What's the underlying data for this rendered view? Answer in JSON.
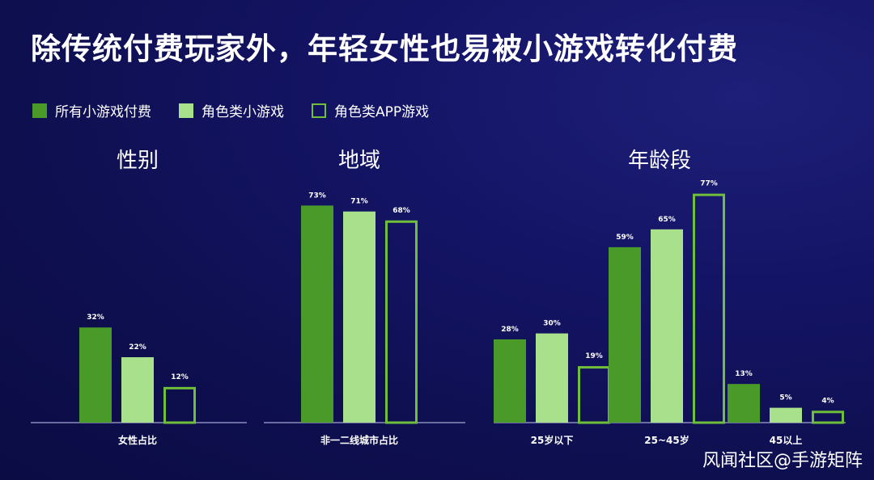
{
  "title": "除传统付费玩家外，年轻女性也易被小游戏转化付费",
  "legend": [
    {
      "label": "所有小游戏付费",
      "color": "#4a9a2a",
      "style": "filled"
    },
    {
      "label": "角色类小游戏",
      "color": "#a8e08c",
      "style": "filled"
    },
    {
      "label": "角色类APP游戏",
      "color": "#6fbf3a",
      "style": "outline"
    }
  ],
  "panels": {
    "gender": {
      "title": "性别"
    },
    "region": {
      "title": "地域"
    },
    "age": {
      "title": "年龄段"
    }
  },
  "watermark": "风闻社区@手游矩阵",
  "chart_data": [
    {
      "type": "bar",
      "title": "性别",
      "categories": [
        "女性占比"
      ],
      "series": [
        {
          "name": "所有小游戏付费",
          "values": [
            32
          ]
        },
        {
          "name": "角色类小游戏",
          "values": [
            22
          ]
        },
        {
          "name": "角色类APP游戏",
          "values": [
            12
          ]
        }
      ],
      "value_labels": [
        [
          "32%"
        ],
        [
          "22%"
        ],
        [
          "12%"
        ]
      ]
    },
    {
      "type": "bar",
      "title": "地域",
      "categories": [
        "非一二线城市占比"
      ],
      "series": [
        {
          "name": "所有小游戏付费",
          "values": [
            73
          ]
        },
        {
          "name": "角色类小游戏",
          "values": [
            71
          ]
        },
        {
          "name": "角色类APP游戏",
          "values": [
            68
          ]
        }
      ],
      "value_labels": [
        [
          "73%"
        ],
        [
          "71%"
        ],
        [
          "68%"
        ]
      ]
    },
    {
      "type": "bar",
      "title": "年龄段",
      "categories": [
        "25岁以下",
        "25~45岁",
        "45以上"
      ],
      "series": [
        {
          "name": "所有小游戏付费",
          "values": [
            28,
            59,
            13
          ]
        },
        {
          "name": "角色类小游戏",
          "values": [
            30,
            65,
            5
          ]
        },
        {
          "name": "角色类APP游戏",
          "values": [
            19,
            77,
            4
          ]
        }
      ],
      "value_labels": [
        [
          "28%",
          "59%",
          "13%"
        ],
        [
          "30%",
          "65%",
          "5%"
        ],
        [
          "19%",
          "77%",
          "4%"
        ]
      ]
    }
  ]
}
